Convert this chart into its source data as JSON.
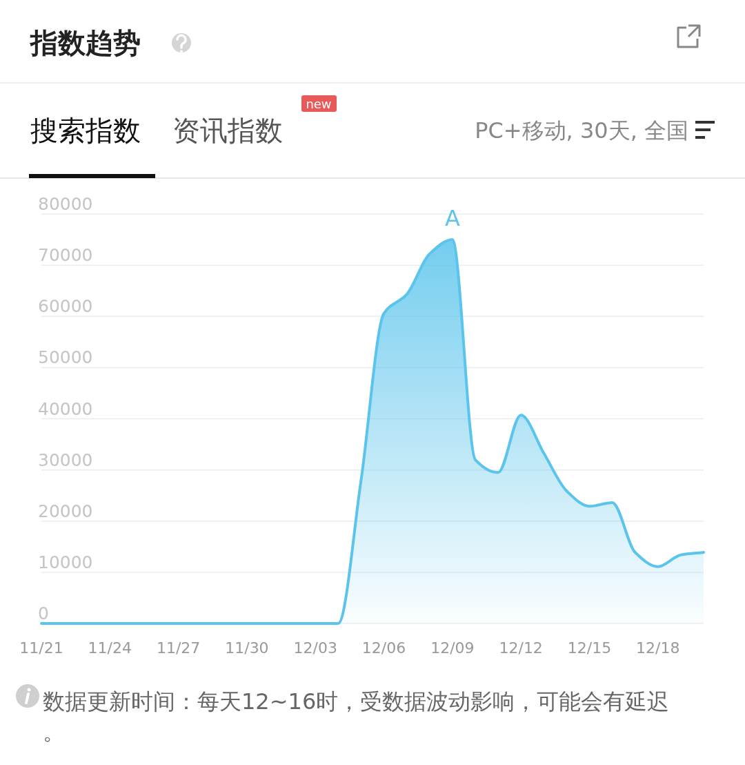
{
  "chart_data": {
    "type": "area",
    "title": "指数趋势",
    "x": [
      "--11-21",
      "--11-22",
      "--11-23",
      "--11-24",
      "--11-25",
      "--11-26",
      "--11-27",
      "--11-28",
      "--11-29",
      "--11-30",
      "--12-01",
      "--12-02",
      "--12-03",
      "--12-04",
      "--12-05",
      "--12-06",
      "--12-07",
      "--12-08",
      "--12-09",
      "--12-10",
      "--12-11",
      "--12-12",
      "--12-13",
      "--12-14",
      "--12-15",
      "--12-16",
      "--12-17",
      "--12-18",
      "--12-19",
      "--12-20"
    ],
    "series": [
      {
        "color": "#5bc4ec",
        "values": [
          0,
          0,
          0,
          0,
          0,
          0,
          0,
          0,
          0,
          0,
          0,
          0,
          0,
          0,
          28000,
          60600,
          64300,
          72200,
          75000,
          32000,
          29500,
          40700,
          33300,
          25900,
          22900,
          23600,
          13900,
          11100,
          13400,
          13900
        ]
      }
    ],
    "xlim": [
      "--11-21",
      "--12-20"
    ],
    "ylim": [
      0,
      80000
    ],
    "xticks": [
      {
        "value": "--11-21",
        "label": "11/21"
      },
      {
        "value": "--11-24",
        "label": "11/24"
      },
      {
        "value": "--11-27",
        "label": "11/27"
      },
      {
        "value": "--11-30",
        "label": "11/30"
      },
      {
        "value": "--12-03",
        "label": "12/03"
      },
      {
        "value": "--12-06",
        "label": "12/06"
      },
      {
        "value": "--12-09",
        "label": "12/09"
      },
      {
        "value": "--12-12",
        "label": "12/12"
      },
      {
        "value": "--12-15",
        "label": "12/15"
      },
      {
        "value": "--12-18",
        "label": "12/18"
      }
    ],
    "yticks": [
      0,
      10000,
      20000,
      30000,
      40000,
      50000,
      60000,
      70000,
      80000
    ],
    "grid": "y",
    "annotations": [
      {
        "text": "A",
        "x": "--12-09",
        "y": 75000
      },
      "搜索指数",
      "资讯指数",
      "new",
      "PC+移动, 30天, 全国",
      "数据更新时间：每天12~16时，受数据波动影响，可能会有延迟。"
    ]
  }
}
